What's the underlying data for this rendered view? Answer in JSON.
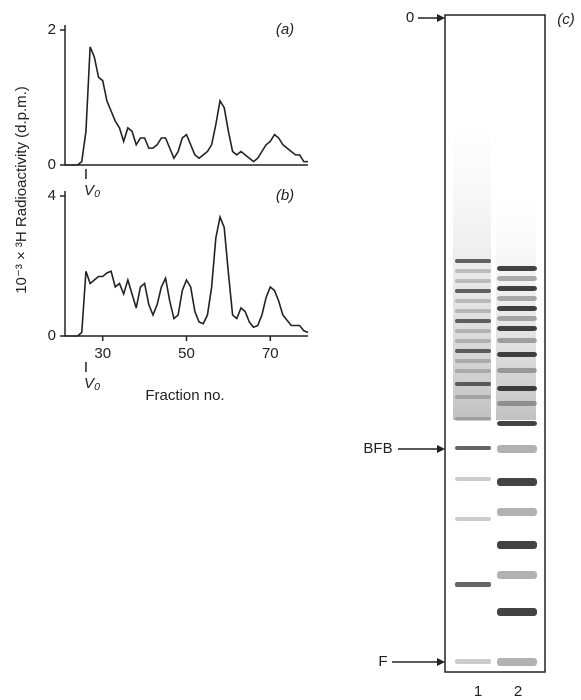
{
  "chart_data": [
    {
      "type": "line",
      "panel_label": "(a)",
      "ylabel": "10⁻³ × ³H Radioactivity (d.p.m.)",
      "annotation": {
        "text": "V₀",
        "x": 26
      },
      "x": [
        21,
        24,
        25,
        26,
        27,
        28,
        29,
        30,
        31,
        32,
        33,
        34,
        35,
        36,
        37,
        38,
        39,
        40,
        41,
        42,
        43,
        44,
        45,
        46,
        47,
        48,
        49,
        50,
        51,
        52,
        53,
        54,
        55,
        56,
        57,
        58,
        59,
        60,
        61,
        62,
        63,
        64,
        65,
        66,
        67,
        68,
        69,
        70,
        71,
        72,
        73,
        74,
        75,
        76,
        77,
        78,
        79
      ],
      "values": [
        0,
        0,
        0.05,
        0.5,
        1.75,
        1.6,
        1.3,
        1.25,
        0.95,
        0.8,
        0.65,
        0.55,
        0.35,
        0.55,
        0.5,
        0.3,
        0.4,
        0.4,
        0.25,
        0.25,
        0.3,
        0.4,
        0.4,
        0.25,
        0.1,
        0.2,
        0.4,
        0.45,
        0.3,
        0.15,
        0.1,
        0.15,
        0.2,
        0.3,
        0.6,
        0.95,
        0.85,
        0.5,
        0.2,
        0.15,
        0.2,
        0.15,
        0.1,
        0.05,
        0.1,
        0.2,
        0.3,
        0.35,
        0.45,
        0.4,
        0.3,
        0.25,
        0.2,
        0.15,
        0.15,
        0.05,
        0.05
      ],
      "color": "#222",
      "xlim": [
        21,
        79
      ],
      "ylim": [
        0,
        2
      ],
      "yticks": [
        0,
        2
      ]
    },
    {
      "type": "line",
      "panel_label": "(b)",
      "xlabel": "Fraction no.",
      "annotation": {
        "text": "V₀",
        "x": 26
      },
      "x": [
        21,
        24,
        25,
        26,
        27,
        28,
        29,
        30,
        31,
        32,
        33,
        34,
        35,
        36,
        37,
        38,
        39,
        40,
        41,
        42,
        43,
        44,
        45,
        46,
        47,
        48,
        49,
        50,
        51,
        52,
        53,
        54,
        55,
        56,
        57,
        58,
        59,
        60,
        61,
        62,
        63,
        64,
        65,
        66,
        67,
        68,
        69,
        70,
        71,
        72,
        73,
        74,
        75,
        76,
        77,
        78,
        79
      ],
      "values": [
        0,
        0,
        0.1,
        1.85,
        1.5,
        1.6,
        1.7,
        1.7,
        1.8,
        1.85,
        1.4,
        1.5,
        1.2,
        1.6,
        1.2,
        0.8,
        1.4,
        1.5,
        0.9,
        0.6,
        0.9,
        1.4,
        1.65,
        1.0,
        0.5,
        0.6,
        1.3,
        1.6,
        1.4,
        0.7,
        0.4,
        0.35,
        0.6,
        1.4,
        2.8,
        3.4,
        3.1,
        1.8,
        0.6,
        0.5,
        0.8,
        0.7,
        0.4,
        0.25,
        0.3,
        0.6,
        1.1,
        1.4,
        1.3,
        1.0,
        0.6,
        0.45,
        0.3,
        0.3,
        0.3,
        0.15,
        0.1
      ],
      "color": "#222",
      "xlim": [
        21,
        79
      ],
      "ylim": [
        0,
        4
      ],
      "yticks": [
        0,
        4
      ],
      "xticks": [
        30,
        50,
        70
      ]
    }
  ],
  "gel": {
    "panel_label": "(c)",
    "markers": [
      "0",
      "BFB",
      "F"
    ],
    "lanes": [
      "1",
      "2"
    ]
  }
}
